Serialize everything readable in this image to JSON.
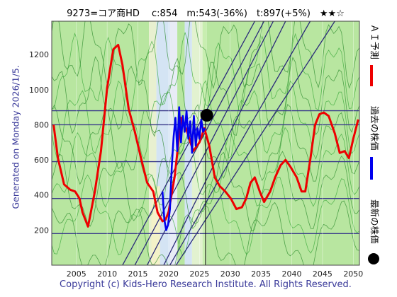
{
  "header": {
    "title": "9273=コア商HD　 c:854　m:543(-36%)　t:897(+5%)　★★☆",
    "side_text": "Generated on Monday 2026/1/5.",
    "copyright": "Copyright (c) Kids-Hero Research Institute. All Rights Reserved."
  },
  "legend": [
    {
      "label": "ＡＩ予測",
      "color": "#ee0000",
      "marker": "line"
    },
    {
      "label": "過去の株価",
      "color": "#0000ee",
      "marker": "line"
    },
    {
      "label": "最新の株価",
      "color": "#000000",
      "marker": "dot"
    }
  ],
  "chart_data": {
    "type": "line",
    "title": "",
    "xlabel": "",
    "ylabel": "",
    "xlim": [
      2001,
      2051
    ],
    "ylim": [
      0,
      1390
    ],
    "x_ticks": [
      2005,
      2010,
      2015,
      2020,
      2025,
      2030,
      2035,
      2040,
      2045,
      2050
    ],
    "y_ticks": [
      200,
      400,
      600,
      800,
      1000,
      1200
    ],
    "horizontal_levels": [
      180,
      380,
      590,
      800,
      880
    ],
    "latest_point": {
      "x": 2026.2,
      "y": 854
    },
    "series": [
      {
        "role": "forecast",
        "color": "#ee0000",
        "x": [
          2001.3,
          2002,
          2003,
          2004,
          2004.8,
          2005.5,
          2006,
          2006.9,
          2008,
          2009,
          2010,
          2011,
          2011.8,
          2012.5,
          2013.5,
          2014.5,
          2015.5,
          2016.5,
          2017.5,
          2018.2,
          2019,
          2019.5,
          2020,
          2021,
          2022,
          2023,
          2024,
          2025,
          2025.8,
          2026.6,
          2027.5,
          2028.3,
          2029.2,
          2030.1,
          2031,
          2031.9,
          2032.6,
          2033.3,
          2034,
          2034.8,
          2035.5,
          2036.5,
          2037.3,
          2038.2,
          2039,
          2039.8,
          2040.8,
          2041.6,
          2042.2,
          2043,
          2043.8,
          2044.5,
          2045.2,
          2046,
          2047,
          2047.8,
          2048.6,
          2049.3,
          2050,
          2050.8
        ],
        "y": [
          800,
          610,
          460,
          430,
          420,
          380,
          300,
          220,
          420,
          650,
          1010,
          1230,
          1255,
          1140,
          890,
          760,
          610,
          470,
          420,
          300,
          250,
          260,
          305,
          510,
          840,
          760,
          650,
          700,
          780,
          680,
          500,
          450,
          420,
          380,
          320,
          330,
          380,
          470,
          500,
          420,
          360,
          420,
          500,
          570,
          600,
          560,
          500,
          420,
          420,
          600,
          800,
          860,
          870,
          850,
          750,
          640,
          650,
          610,
          720,
          830
        ]
      },
      {
        "role": "past",
        "color": "#0000ee",
        "x": [
          2019.0,
          2019.3,
          2019.6,
          2019.9,
          2020.2,
          2020.5,
          2020.8,
          2021.1,
          2021.4,
          2021.7,
          2022.0,
          2022.3,
          2022.6,
          2022.9,
          2023.2,
          2023.5,
          2023.8,
          2024.1,
          2024.4,
          2024.7,
          2025.0,
          2025.3,
          2025.6,
          2025.9
        ],
        "y": [
          420,
          260,
          200,
          230,
          320,
          560,
          730,
          840,
          650,
          900,
          700,
          850,
          760,
          880,
          720,
          820,
          640,
          850,
          680,
          780,
          720,
          830,
          760,
          780
        ]
      }
    ]
  }
}
